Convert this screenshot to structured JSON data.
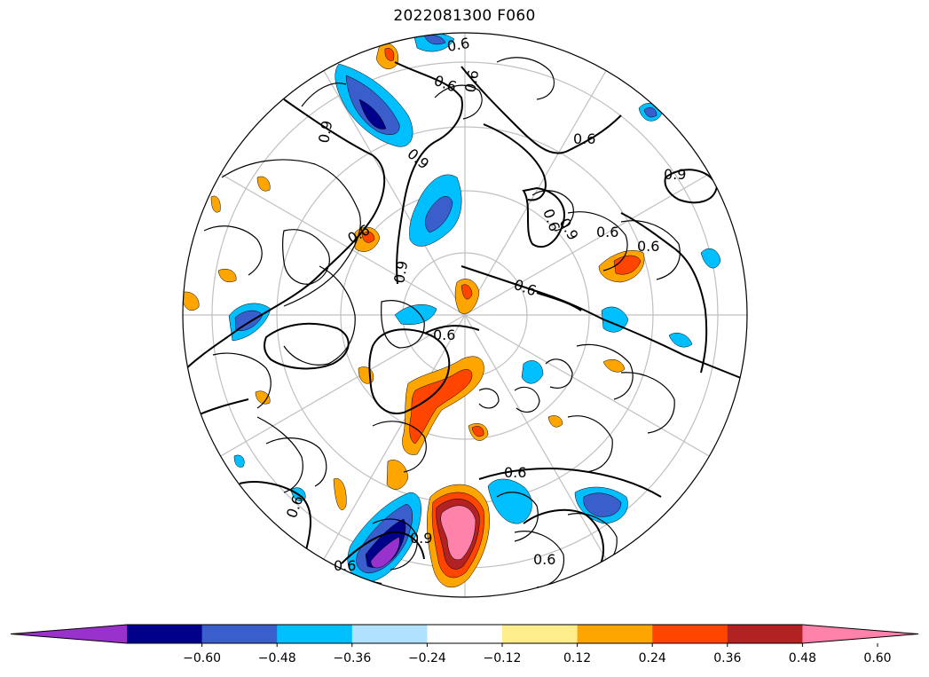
{
  "title": "2022081300 F060",
  "colorbar": {
    "colors": [
      "#9932CC",
      "#00008B",
      "#3A5FCD",
      "#00BFFF",
      "#B0E2FF",
      "#FFFFFF",
      "#FFEC8B",
      "#FFA500",
      "#FF4500",
      "#B22222",
      "#FF82AB"
    ],
    "ticks": [
      "−0.60",
      "−0.48",
      "−0.36",
      "−0.24",
      "−0.12",
      "0.12",
      "0.24",
      "0.36",
      "0.48",
      "0.60"
    ]
  },
  "contour_labels": [
    "0.6",
    "0.6",
    "0.6",
    "0.9",
    "0.6",
    "0.9",
    "0.6",
    "0.9",
    "0.9",
    "0.6",
    "0.6",
    "0.6",
    "0.6",
    "0.9",
    "0.6",
    "0.9",
    "0.6",
    "0.6",
    "0.6",
    "0.6"
  ]
}
